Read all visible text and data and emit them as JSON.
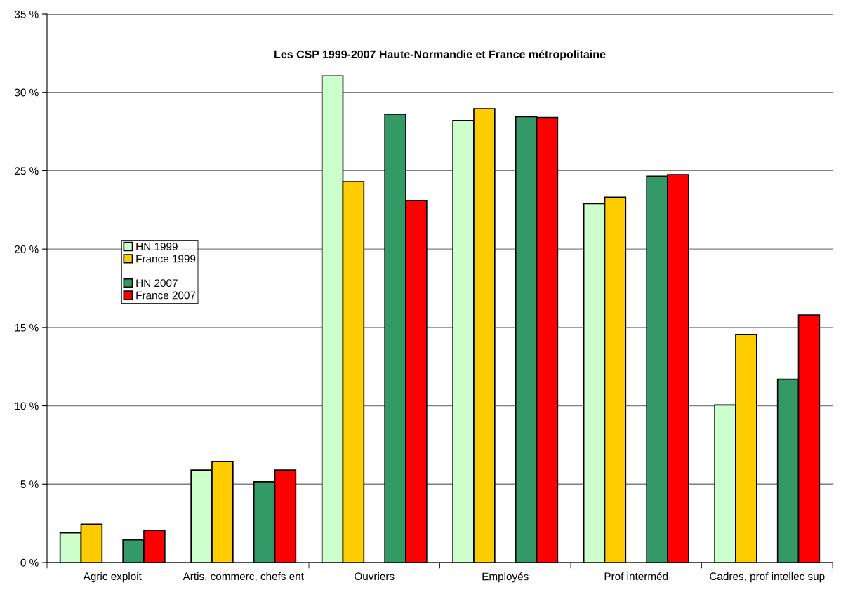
{
  "chart_data": {
    "type": "bar",
    "title": "Les CSP 1999-2007 Haute-Normandie et France métropolitaine",
    "categories": [
      "Agric exploit",
      "Artis, commerc, chefs ent",
      "Ouvriers",
      "Employés",
      "Prof interméd",
      "Cadres, prof intellec sup"
    ],
    "series": [
      {
        "name": "HN 1999",
        "color": "#ccffcc",
        "values": [
          1.9,
          5.9,
          31.05,
          28.2,
          22.9,
          10.05
        ]
      },
      {
        "name": "France 1999",
        "color": "#ffcc00",
        "values": [
          2.45,
          6.45,
          24.3,
          28.95,
          23.3,
          14.55
        ]
      },
      {
        "name": "HN 2007",
        "color": "#339966",
        "values": [
          1.45,
          5.15,
          28.6,
          28.45,
          24.65,
          11.7
        ]
      },
      {
        "name": "France 2007",
        "color": "#ff0000",
        "values": [
          2.05,
          5.9,
          23.1,
          28.4,
          24.75,
          15.8
        ]
      }
    ],
    "ylim": [
      0,
      35
    ],
    "yticks": [
      {
        "value": 0,
        "label": "0 %"
      },
      {
        "value": 5,
        "label": "5 %"
      },
      {
        "value": 10,
        "label": "10 %"
      },
      {
        "value": 15,
        "label": "15 %"
      },
      {
        "value": 20,
        "label": "20 %"
      },
      {
        "value": 25,
        "label": "25 %"
      },
      {
        "value": 30,
        "label": "30 %"
      },
      {
        "value": 35,
        "label": "35 %"
      }
    ],
    "grid": "y",
    "legend": "center left"
  }
}
